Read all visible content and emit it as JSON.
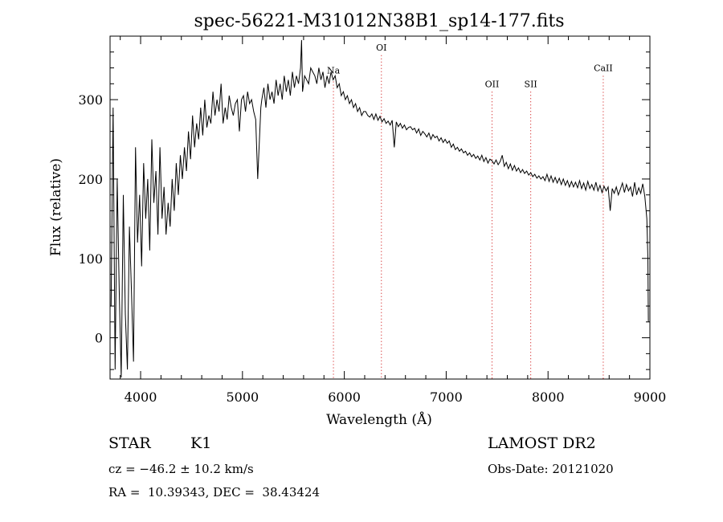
{
  "chart_data": {
    "type": "line",
    "title": "spec-56221-M31012N38B1_sp14-177.fits",
    "xlabel": "Wavelength (Å)",
    "ylabel": "Flux (relative)",
    "xlim": [
      3700,
      9000
    ],
    "ylim": [
      -52,
      380
    ],
    "x_ticks": [
      {
        "value": 4000,
        "label": "4000"
      },
      {
        "value": 5000,
        "label": "5000"
      },
      {
        "value": 6000,
        "label": "6000"
      },
      {
        "value": 7000,
        "label": "7000"
      },
      {
        "value": 8000,
        "label": "8000"
      },
      {
        "value": 9000,
        "label": "9000"
      }
    ],
    "y_ticks": [
      {
        "value": 0,
        "label": "0"
      },
      {
        "value": 100,
        "label": "100"
      },
      {
        "value": 200,
        "label": "200"
      },
      {
        "value": 300,
        "label": "300"
      }
    ],
    "grid": false,
    "line_color": "#000000",
    "marker_color": "#cc0000",
    "lines": [
      {
        "label": "Na",
        "wavelength": 5893,
        "label_y": 333
      },
      {
        "label": "OI",
        "wavelength": 6364,
        "label_y": 362
      },
      {
        "label": "OII",
        "wavelength": 7450,
        "label_y": 316
      },
      {
        "label": "SII",
        "wavelength": 7830,
        "label_y": 316
      },
      {
        "label": "CaII",
        "wavelength": 8542,
        "label_y": 336
      }
    ],
    "series": [
      {
        "x": [
          3710,
          3730,
          3750,
          3770,
          3790,
          3810,
          3830,
          3850,
          3870,
          3890,
          3910,
          3930,
          3950,
          3970,
          3990,
          4010,
          4030,
          4050,
          4070,
          4090,
          4110,
          4130,
          4150,
          4170,
          4190,
          4210,
          4230,
          4250,
          4270,
          4290,
          4310,
          4330,
          4350,
          4370,
          4390,
          4410,
          4430,
          4450,
          4470,
          4490,
          4510,
          4530,
          4550,
          4570,
          4590,
          4610,
          4630,
          4650,
          4670,
          4690,
          4710,
          4730,
          4750,
          4770,
          4790,
          4810,
          4830,
          4850,
          4870,
          4890,
          4910,
          4930,
          4950,
          4970,
          4990,
          5010,
          5030,
          5050,
          5070,
          5090,
          5110,
          5130,
          5150,
          5170,
          5180,
          5190,
          5210,
          5230,
          5250,
          5270,
          5290,
          5310,
          5330,
          5350,
          5370,
          5390,
          5410,
          5430,
          5450,
          5470,
          5490,
          5510,
          5530,
          5550,
          5570,
          5580,
          5590,
          5610,
          5630,
          5650,
          5670,
          5690,
          5710,
          5730,
          5750,
          5770,
          5790,
          5810,
          5830,
          5850,
          5870,
          5890,
          5910,
          5930,
          5950,
          5970,
          5990,
          6010,
          6030,
          6050,
          6070,
          6090,
          6110,
          6130,
          6150,
          6170,
          6190,
          6210,
          6230,
          6250,
          6270,
          6290,
          6310,
          6330,
          6350,
          6370,
          6390,
          6410,
          6430,
          6450,
          6470,
          6490,
          6510,
          6530,
          6550,
          6570,
          6590,
          6610,
          6630,
          6650,
          6670,
          6690,
          6710,
          6730,
          6750,
          6770,
          6790,
          6810,
          6830,
          6850,
          6870,
          6890,
          6910,
          6930,
          6950,
          6970,
          6990,
          7010,
          7030,
          7050,
          7070,
          7090,
          7110,
          7130,
          7150,
          7170,
          7190,
          7210,
          7230,
          7250,
          7270,
          7290,
          7310,
          7330,
          7350,
          7370,
          7390,
          7410,
          7430,
          7450,
          7470,
          7490,
          7510,
          7530,
          7550,
          7570,
          7590,
          7610,
          7630,
          7650,
          7670,
          7690,
          7710,
          7730,
          7750,
          7770,
          7790,
          7810,
          7830,
          7850,
          7870,
          7890,
          7910,
          7930,
          7950,
          7970,
          7990,
          8010,
          8030,
          8050,
          8070,
          8090,
          8110,
          8130,
          8150,
          8170,
          8190,
          8210,
          8230,
          8250,
          8270,
          8290,
          8310,
          8330,
          8350,
          8370,
          8390,
          8410,
          8430,
          8450,
          8470,
          8490,
          8510,
          8530,
          8550,
          8570,
          8590,
          8610,
          8630,
          8650,
          8670,
          8690,
          8710,
          8730,
          8750,
          8770,
          8790,
          8810,
          8830,
          8850,
          8870,
          8890,
          8910,
          8930,
          8950,
          8970,
          8980,
          8985
        ],
        "y": [
          40,
          290,
          -40,
          200,
          60,
          -50,
          180,
          30,
          -40,
          140,
          60,
          -30,
          240,
          120,
          180,
          90,
          220,
          150,
          200,
          110,
          250,
          170,
          210,
          130,
          240,
          150,
          190,
          130,
          170,
          140,
          200,
          160,
          220,
          180,
          230,
          200,
          240,
          210,
          260,
          225,
          280,
          240,
          270,
          250,
          290,
          255,
          300,
          265,
          280,
          270,
          310,
          280,
          300,
          285,
          320,
          270,
          290,
          275,
          305,
          290,
          280,
          295,
          300,
          260,
          300,
          305,
          285,
          310,
          295,
          300,
          285,
          275,
          200,
          260,
          290,
          300,
          315,
          290,
          320,
          300,
          310,
          295,
          325,
          305,
          320,
          300,
          330,
          310,
          325,
          305,
          335,
          315,
          330,
          320,
          340,
          375,
          310,
          330,
          325,
          320,
          340,
          335,
          330,
          320,
          340,
          325,
          335,
          315,
          330,
          320,
          335,
          325,
          330,
          315,
          320,
          305,
          310,
          300,
          305,
          295,
          300,
          290,
          295,
          285,
          290,
          280,
          285,
          285,
          280,
          278,
          282,
          275,
          282,
          274,
          279,
          272,
          276,
          270,
          273,
          268,
          274,
          240,
          272,
          266,
          270,
          264,
          268,
          262,
          265,
          266,
          262,
          264,
          258,
          263,
          255,
          260,
          257,
          253,
          258,
          250,
          256,
          252,
          254,
          248,
          252,
          246,
          250,
          245,
          248,
          240,
          244,
          237,
          240,
          235,
          238,
          233,
          235,
          230,
          233,
          228,
          231,
          226,
          229,
          224,
          230,
          222,
          227,
          220,
          225,
          223,
          219,
          224,
          218,
          222,
          230,
          216,
          221,
          213,
          219,
          211,
          217,
          210,
          214,
          208,
          212,
          207,
          210,
          205,
          208,
          203,
          206,
          201,
          204,
          200,
          203,
          198,
          206,
          197,
          204,
          196,
          202,
          195,
          201,
          193,
          200,
          192,
          198,
          190,
          197,
          190,
          196,
          189,
          198,
          188,
          195,
          186,
          197,
          188,
          193,
          186,
          196,
          185,
          192,
          183,
          191,
          185,
          190,
          160,
          188,
          182,
          190,
          180,
          187,
          195,
          183,
          193,
          185,
          190,
          178,
          196,
          180,
          189,
          182,
          194,
          178,
          150,
          100,
          20
        ]
      }
    ],
    "annotations": {
      "object_class": "STAR",
      "subclass": "K1",
      "survey": "LAMOST DR2",
      "cz": "cz = −46.2 ± 10.2 km/s",
      "obs_date": "Obs-Date: 20121020",
      "coords": "RA =  10.39343, DEC =  38.43424"
    }
  }
}
